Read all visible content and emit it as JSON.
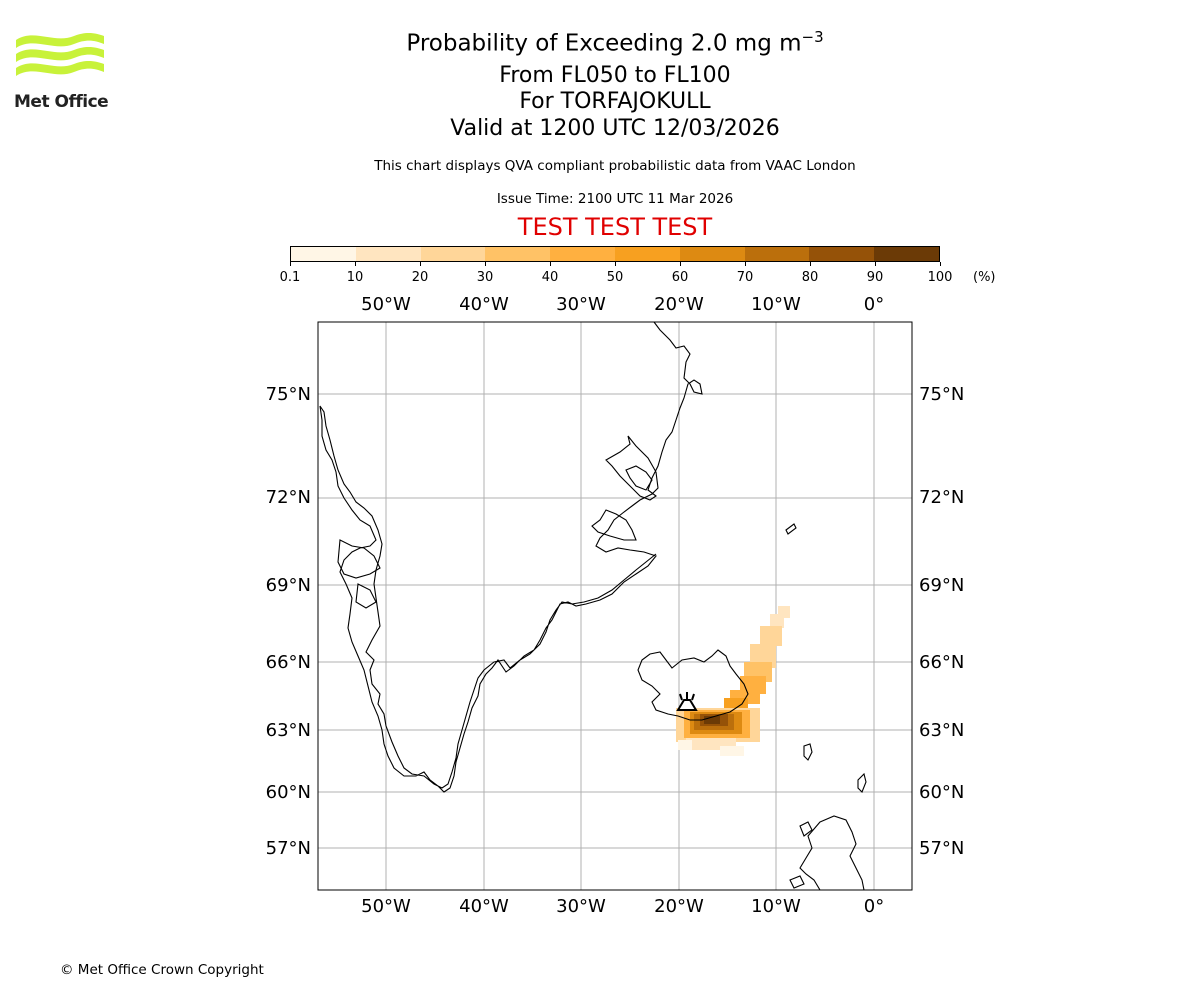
{
  "logo": {
    "text": "Met Office",
    "color": "#c8f23a"
  },
  "titles": {
    "main_prefix": "Probability of Exceeding 2.0 mg m",
    "main_exponent": "−3",
    "levels": "From FL050 to FL100",
    "volcano": "For TORFAJOKULL",
    "valid": "Valid at 1200 UTC 12/03/2026"
  },
  "subtitle": "This chart displays QVA compliant probabilistic data from VAAC London",
  "issue_time": "Issue Time: 2100 UTC 11 Mar 2026",
  "test_banner": "TEST TEST TEST",
  "colorbar": {
    "ticks": [
      "0.1",
      "10",
      "20",
      "30",
      "40",
      "50",
      "60",
      "70",
      "80",
      "90",
      "100"
    ],
    "unit": "(%)",
    "colors": [
      "#fff6e6",
      "#ffe5c0",
      "#ffd699",
      "#ffc266",
      "#ffb040",
      "#f7a020",
      "#dd8a12",
      "#bb6f0c",
      "#955208",
      "#6b3a06"
    ]
  },
  "map": {
    "lon_labels": [
      "50°W",
      "40°W",
      "30°W",
      "20°W",
      "10°W",
      "0°"
    ],
    "lat_labels": [
      "75°N",
      "72°N",
      "69°N",
      "66°N",
      "63°N",
      "60°N",
      "57°N"
    ],
    "volcano_marker": "volcano-icon"
  },
  "copyright": "© Met Office Crown Copyright"
}
